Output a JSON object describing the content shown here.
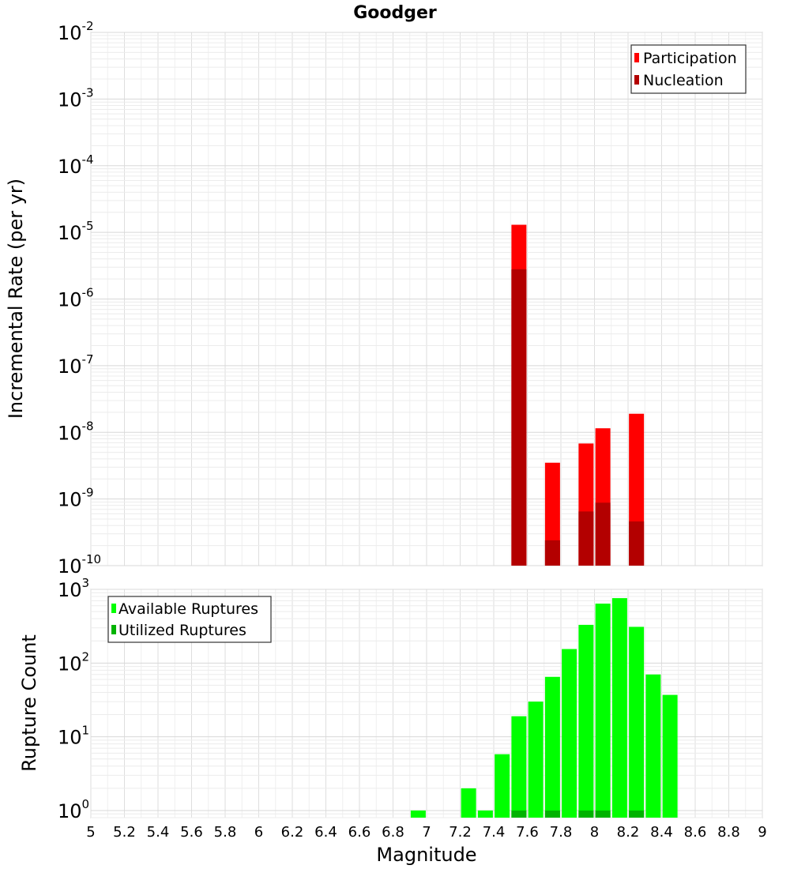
{
  "chart_data": [
    {
      "type": "bar",
      "title": "Goodger",
      "xlabel": "Magnitude",
      "ylabel": "Incremental Rate (per yr)",
      "xlim": [
        5,
        9
      ],
      "ylim": [
        1e-10,
        0.01
      ],
      "yscale": "log",
      "grid": true,
      "legend_position": "top-right",
      "y_tick_labels": [
        {
          "base": "10",
          "exp": "-10"
        },
        {
          "base": "10",
          "exp": "-9"
        },
        {
          "base": "10",
          "exp": "-8"
        },
        {
          "base": "10",
          "exp": "-7"
        },
        {
          "base": "10",
          "exp": "-6"
        },
        {
          "base": "10",
          "exp": "-5"
        },
        {
          "base": "10",
          "exp": "-4"
        },
        {
          "base": "10",
          "exp": "-3"
        },
        {
          "base": "10",
          "exp": "-2"
        }
      ],
      "series": [
        {
          "name": "Participation",
          "color": "#ff0000",
          "points": [
            [
              7.55,
              1.3e-05
            ],
            [
              7.75,
              3.5e-09
            ],
            [
              7.95,
              6.8e-09
            ],
            [
              8.05,
              1.15e-08
            ],
            [
              8.25,
              1.9e-08
            ]
          ]
        },
        {
          "name": "Nucleation",
          "color": "#b30000",
          "points": [
            [
              7.55,
              2.8e-06
            ],
            [
              7.75,
              2.4e-10
            ],
            [
              7.95,
              6.5e-10
            ],
            [
              8.05,
              8.8e-10
            ],
            [
              8.25,
              4.6e-10
            ]
          ]
        }
      ]
    },
    {
      "type": "bar",
      "title": "",
      "xlabel": "Magnitude",
      "ylabel": "Rupture Count",
      "xlim": [
        5,
        9
      ],
      "ylim": [
        0.8,
        1000
      ],
      "yscale": "log",
      "grid": true,
      "legend_position": "top-left",
      "x_tick_labels": [
        "5",
        "5.2",
        "5.4",
        "5.6",
        "5.8",
        "6",
        "6.2",
        "6.4",
        "6.6",
        "6.8",
        "7",
        "7.2",
        "7.4",
        "7.6",
        "7.8",
        "8",
        "8.2",
        "8.4",
        "8.6",
        "8.8",
        "9"
      ],
      "y_tick_labels": [
        {
          "base": "10",
          "exp": "0"
        },
        {
          "base": "10",
          "exp": "1"
        },
        {
          "base": "10",
          "exp": "2"
        },
        {
          "base": "10",
          "exp": "3"
        }
      ],
      "series": [
        {
          "name": "Available Ruptures",
          "color": "#00ff00",
          "points": [
            [
              6.95,
              1
            ],
            [
              7.25,
              2
            ],
            [
              7.35,
              1
            ],
            [
              7.45,
              5.8
            ],
            [
              7.55,
              19
            ],
            [
              7.65,
              30
            ],
            [
              7.75,
              65
            ],
            [
              7.85,
              155
            ],
            [
              7.95,
              330
            ],
            [
              8.05,
              640
            ],
            [
              8.15,
              760
            ],
            [
              8.25,
              310
            ],
            [
              8.35,
              70
            ],
            [
              8.45,
              37
            ]
          ]
        },
        {
          "name": "Utilized Ruptures",
          "color": "#00b300",
          "points": [
            [
              7.55,
              1
            ],
            [
              7.75,
              1
            ],
            [
              7.95,
              1
            ],
            [
              8.05,
              1
            ],
            [
              8.25,
              1
            ]
          ]
        }
      ]
    }
  ]
}
